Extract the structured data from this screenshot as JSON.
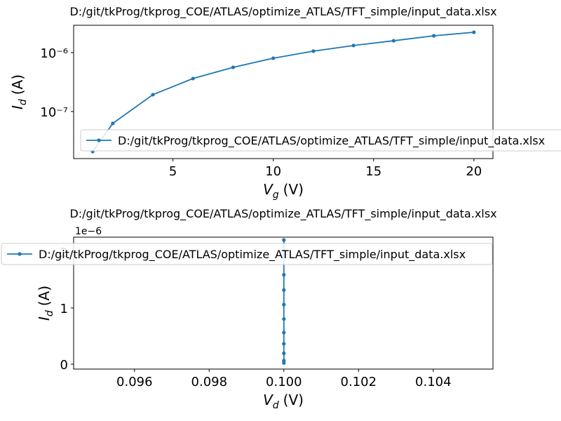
{
  "chart_data": [
    {
      "type": "line",
      "title": "D:/git/tkProg/tkprog_COE/ATLAS/optimize_ATLAS/TFT_simple/input_data.xlsx",
      "xlabel": {
        "symbol": "V",
        "subscript": "g",
        "unit": "(V)"
      },
      "ylabel": {
        "symbol": "I",
        "subscript": "d",
        "unit": "(A)"
      },
      "x": [
        1,
        2,
        4,
        6,
        8,
        10,
        12,
        14,
        16,
        18,
        20
      ],
      "series": [
        {
          "name": "D:/git/tkProg/tkprog_COE/ATLAS/optimize_ATLAS/TFT_simple/input_data.xlsx",
          "color": "#1f77b4",
          "values": [
            2.1e-08,
            6.28e-08,
            1.93e-07,
            3.63e-07,
            5.62e-07,
            8.03e-07,
            1.06e-06,
            1.32e-06,
            1.59e-06,
            1.93e-06,
            2.21e-06
          ]
        }
      ],
      "xlim": [
        0.05,
        20.95
      ],
      "xticks": [
        5,
        10,
        15,
        20
      ],
      "ylim": [
        1.59e-08,
        2.91e-06
      ],
      "ylog": true,
      "yticks": [
        {
          "value": 1e-07,
          "label": "10⁻⁷"
        },
        {
          "value": 1e-06,
          "label": "10⁻⁶"
        }
      ],
      "legend": "lower left"
    },
    {
      "type": "line",
      "title": "D:/git/tkProg/tkprog_COE/ATLAS/optimize_ATLAS/TFT_simple/input_data.xlsx",
      "xlabel": {
        "symbol": "V",
        "subscript": "d",
        "unit": "(V)"
      },
      "ylabel": {
        "symbol": "I",
        "subscript": "d",
        "unit": "(A)"
      },
      "offset_text": "1e−6",
      "x": [
        0.1,
        0.1,
        0.1,
        0.1,
        0.1,
        0.1,
        0.1,
        0.1,
        0.1,
        0.1,
        0.1
      ],
      "series": [
        {
          "name": "D:/git/tkProg/tkprog_COE/ATLAS/optimize_ATLAS/TFT_simple/input_data.xlsx",
          "color": "#1f77b4",
          "values": [
            2.1e-08,
            6.28e-08,
            1.93e-07,
            3.63e-07,
            5.62e-07,
            8.03e-07,
            1.06e-06,
            1.32e-06,
            1.59e-06,
            1.93e-06,
            2.21e-06
          ]
        }
      ],
      "xlim": [
        0.09437,
        0.1056
      ],
      "xticks": [
        {
          "value": 0.096,
          "label": "0.096"
        },
        {
          "value": 0.098,
          "label": "0.098"
        },
        {
          "value": 0.1,
          "label": "0.100"
        },
        {
          "value": 0.102,
          "label": "0.102"
        },
        {
          "value": 0.104,
          "label": "0.104"
        }
      ],
      "ylim": [
        -8.75e-08,
        2.26e-06
      ],
      "ylog": false,
      "yticks": [
        0,
        {
          "value": 1e-06,
          "label": "1"
        },
        {
          "value": 2e-06,
          "label": "2"
        }
      ],
      "legend": "upper left"
    }
  ]
}
